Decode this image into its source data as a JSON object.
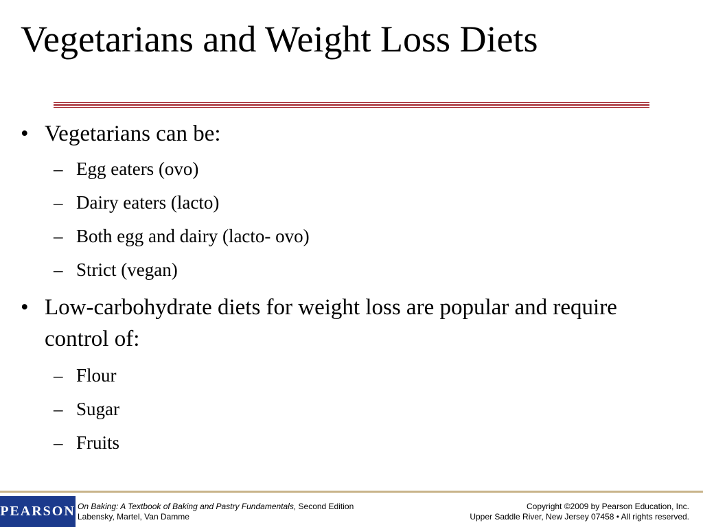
{
  "slide": {
    "title": "Vegetarians and Weight Loss Diets",
    "bullet_mark": "•",
    "sub_mark": "–",
    "bullets": [
      {
        "text": "Vegetarians can be:",
        "subitems": [
          "Egg eaters (ovo)",
          "Dairy eaters (lacto)",
          "Both egg and dairy (lacto- ovo)",
          "Strict (vegan)"
        ]
      },
      {
        "text": "Low-carbohydrate diets for weight loss are popular and require control of:",
        "subitems": [
          "Flour",
          "Sugar",
          "Fruits"
        ]
      }
    ]
  },
  "footer": {
    "logo_text": "PEARSON",
    "book_title": "On Baking: A Textbook of Baking and Pastry Fundamentals,",
    "edition": " Second Edition",
    "authors": "Labensky, Martel, Van Damme",
    "copyright": "Copyright ©2009 by Pearson Education, Inc.",
    "address": "Upper Saddle River, New Jersey 07458 • All rights reserved."
  },
  "colors": {
    "rule": "#a3232c",
    "logo_bg": "#1b3a8c",
    "footer_line": "#c8b48a"
  }
}
